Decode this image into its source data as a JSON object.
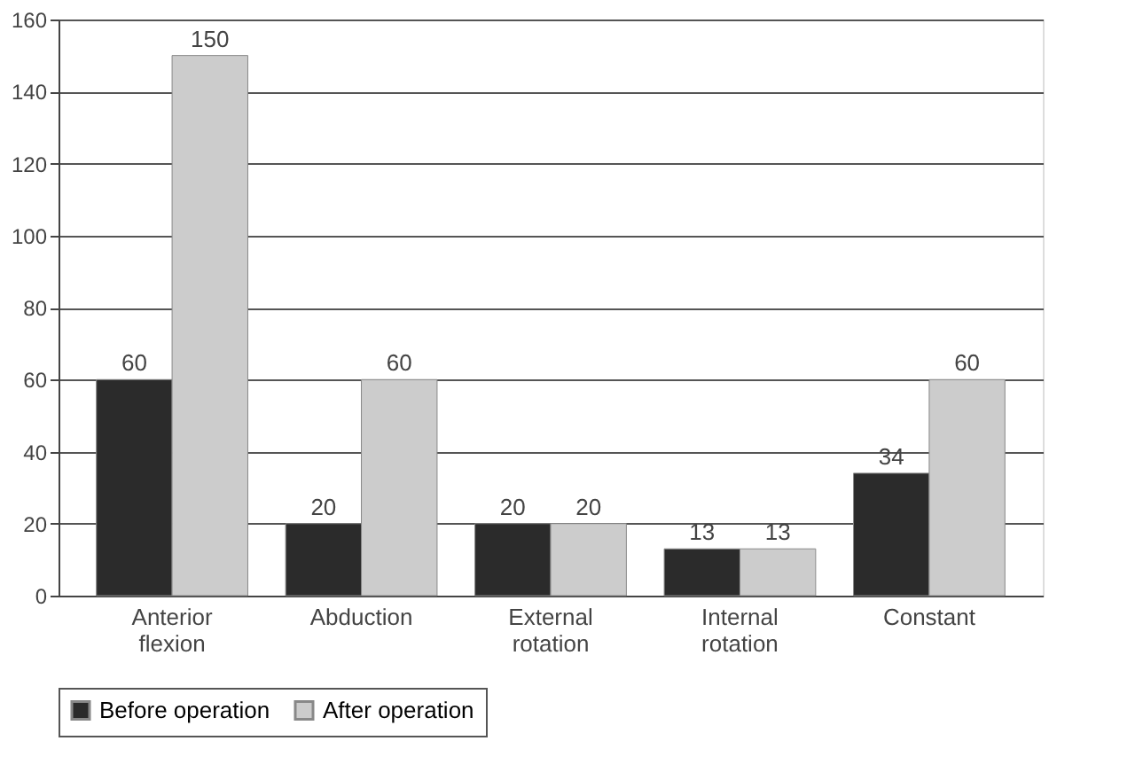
{
  "chart_data": {
    "type": "bar",
    "categories": [
      "Anterior flexion",
      "Abduction",
      "External rotation",
      "Internal rotation",
      "Constant"
    ],
    "series": [
      {
        "name": "Before operation",
        "color": "#2b2b2b",
        "values": [
          60,
          20,
          20,
          13,
          34
        ]
      },
      {
        "name": "After operation",
        "color": "#cccccc",
        "values": [
          150,
          60,
          20,
          13,
          60
        ]
      }
    ],
    "ylim": [
      0,
      160
    ],
    "yticks": [
      0,
      20,
      40,
      60,
      80,
      100,
      120,
      140,
      160
    ],
    "grid": "y",
    "legend": "bottom",
    "data_labels": true
  }
}
